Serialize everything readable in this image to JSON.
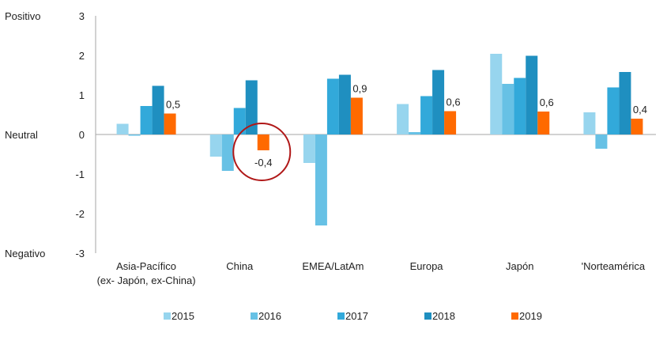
{
  "chart_data": {
    "type": "bar",
    "title": "",
    "xlabel": "",
    "ylabel": "",
    "ylim": [
      -3,
      3
    ],
    "yticks": [
      "3",
      "2",
      "1",
      "0",
      "-1",
      "-2",
      "-3"
    ],
    "ytick_values": [
      3,
      2,
      1,
      0,
      -1,
      -2,
      -3
    ],
    "side_labels": {
      "positive": "Positivo",
      "neutral": "Neutral",
      "negative": "Negativo"
    },
    "categories": [
      [
        "Asia-Pacífico",
        "(ex- Japón, ex-China)"
      ],
      [
        "China"
      ],
      [
        "EMEA/LatAm"
      ],
      [
        "Europa"
      ],
      [
        "Japón"
      ],
      [
        "'Norteamérica"
      ]
    ],
    "series": [
      {
        "name": "2015",
        "color": "#97d5ee",
        "values": [
          0.27,
          -0.56,
          -0.72,
          0.77,
          2.04,
          0.56
        ]
      },
      {
        "name": "2016",
        "color": "#67c1e5",
        "values": [
          -0.03,
          -0.92,
          -2.3,
          0.06,
          1.28,
          -0.36
        ]
      },
      {
        "name": "2017",
        "color": "#32a9da",
        "values": [
          0.72,
          0.67,
          1.41,
          0.97,
          1.43,
          1.19
        ]
      },
      {
        "name": "2018",
        "color": "#1f8fc0",
        "values": [
          1.23,
          1.37,
          1.51,
          1.63,
          1.99,
          1.58
        ]
      },
      {
        "name": "2019",
        "color": "#ff6a00",
        "values": [
          0.53,
          -0.4,
          0.93,
          0.59,
          0.58,
          0.4
        ]
      }
    ],
    "data_labels": [
      "0,5",
      "-0,4",
      "0,9",
      "0,6",
      "0,6",
      "0,4"
    ],
    "highlight": {
      "category_index": 1,
      "color": "#b01818"
    },
    "legend": {
      "position": "bottom"
    },
    "grid": false
  }
}
